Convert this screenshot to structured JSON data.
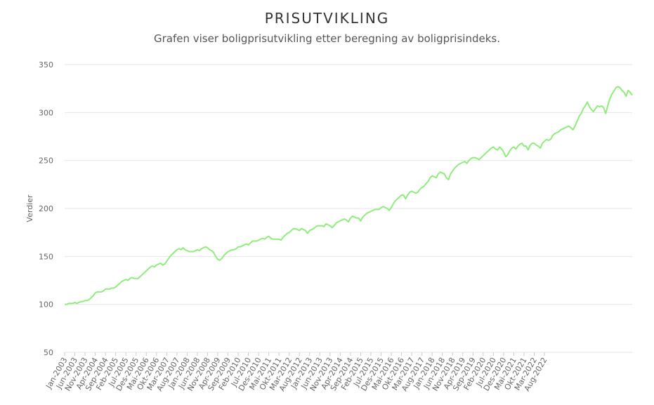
{
  "chart_data": {
    "type": "line",
    "title": "PRISUTVIKLING",
    "subtitle": "Grafen viser boligprisutvikling etter beregning av boligprisindeks.",
    "xlabel": "",
    "ylabel": "Verdier",
    "ylim": [
      50,
      350
    ],
    "yticks": [
      50,
      100,
      150,
      200,
      250,
      300,
      350
    ],
    "grid": true,
    "legend": "none",
    "line_color": "#90ed7d",
    "x_tick_labels": [
      "Jan-2003",
      "Jun-2003",
      "Nov-2003",
      "Apr-2004",
      "Sep-2004",
      "Feb-2005",
      "Jul-2005",
      "Des-2005",
      "Mai-2006",
      "Okt-2006",
      "Mar-2007",
      "Aug-2007",
      "Jan-2008",
      "Jun-2008",
      "Nov-2008",
      "Apr-2009",
      "Sep-2009",
      "Feb-2010",
      "Jul-2010",
      "Des-2010",
      "Mai-2011",
      "Okt-2011",
      "Mar-2012",
      "Aug-2012",
      "Jan-2013",
      "Jun-2013",
      "Nov-2013",
      "Apr-2014",
      "Sep-2014",
      "Feb-2015",
      "Jul-2015",
      "Des-2015",
      "Mai-2016",
      "Okt-2016",
      "Mar-2017",
      "Aug-2017",
      "Jan-2018",
      "Jun-2018",
      "Nov-2018",
      "Apr-2019",
      "Sep-2019",
      "Feb-2020",
      "Jul-2020",
      "Des-2020",
      "Mai-2021",
      "Okt-2021",
      "Mar-2022",
      "Aug-2022"
    ],
    "series": [
      {
        "values": [
          100,
          100,
          101,
          101,
          101,
          102,
          101,
          102,
          103,
          103,
          104,
          104,
          105,
          107,
          109,
          112,
          113,
          113,
          113,
          114,
          116,
          116,
          116,
          117,
          117,
          118,
          120,
          122,
          124,
          125,
          126,
          125,
          127,
          128,
          127,
          127,
          127,
          129,
          131,
          133,
          135,
          137,
          139,
          140,
          139,
          141,
          142,
          143,
          141,
          142,
          145,
          148,
          151,
          153,
          155,
          157,
          158,
          157,
          159,
          157,
          156,
          155,
          155,
          155,
          156,
          157,
          156,
          158,
          159,
          160,
          159,
          157,
          156,
          154,
          150,
          147,
          146,
          148,
          151,
          153,
          155,
          156,
          157,
          157,
          158,
          160,
          160,
          161,
          162,
          163,
          162,
          164,
          166,
          166,
          166,
          167,
          168,
          169,
          168,
          170,
          171,
          169,
          168,
          168,
          168,
          168,
          167,
          170,
          172,
          174,
          175,
          177,
          179,
          179,
          178,
          177,
          179,
          178,
          177,
          174,
          177,
          178,
          179,
          181,
          182,
          182,
          182,
          181,
          184,
          183,
          182,
          180,
          182,
          185,
          186,
          187,
          188,
          189,
          188,
          186,
          190,
          192,
          191,
          190,
          190,
          187,
          191,
          193,
          195,
          196,
          197,
          198,
          199,
          199,
          199,
          201,
          202,
          201,
          200,
          198,
          201,
          205,
          208,
          210,
          212,
          214,
          214,
          210,
          214,
          217,
          218,
          217,
          216,
          217,
          220,
          222,
          223,
          226,
          228,
          232,
          234,
          233,
          232,
          236,
          238,
          237,
          236,
          232,
          230,
          236,
          239,
          242,
          244,
          246,
          247,
          248,
          249,
          247,
          250,
          252,
          253,
          253,
          252,
          251,
          253,
          255,
          257,
          259,
          261,
          263,
          264,
          262,
          261,
          264,
          262,
          259,
          254,
          256,
          260,
          263,
          264,
          262,
          265,
          267,
          268,
          265,
          265,
          261,
          266,
          268,
          268,
          266,
          265,
          263,
          268,
          270,
          272,
          271,
          272,
          276,
          278,
          279,
          280,
          282,
          283,
          284,
          285,
          286,
          284,
          282,
          286,
          291,
          296,
          299,
          304,
          307,
          311,
          306,
          303,
          301,
          304,
          307,
          306,
          307,
          305,
          299,
          307,
          314,
          319,
          322,
          326,
          327,
          326,
          323,
          321,
          317,
          323,
          321,
          318
        ]
      }
    ]
  }
}
